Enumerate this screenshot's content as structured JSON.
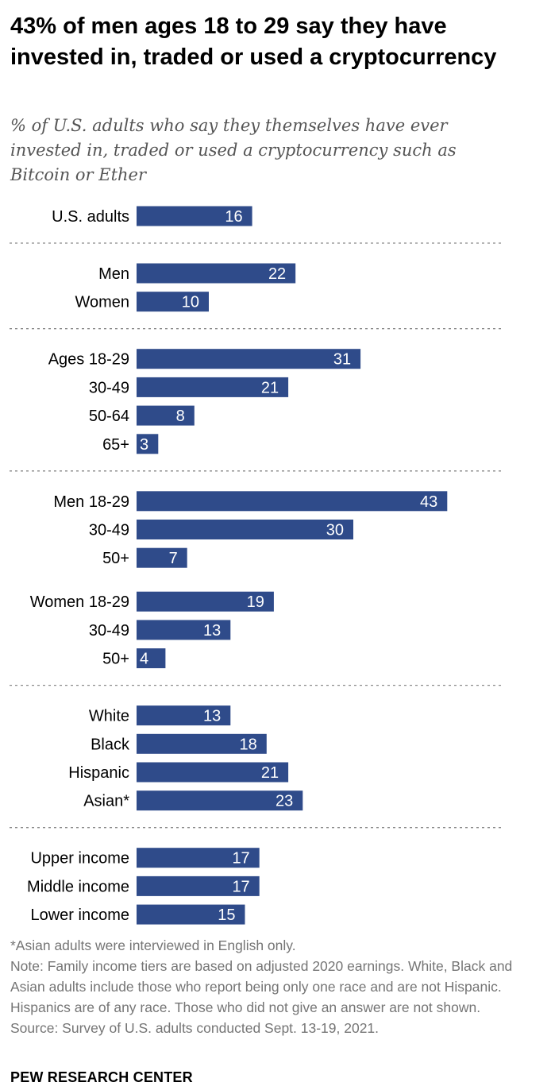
{
  "title": "43% of men ages 18 to 29 say they have invested in, traded or used a cryptocurrency",
  "subtitle": "% of U.S. adults who say they themselves have ever invested in, traded or used a cryptocurrency such as Bitcoin or Ether",
  "chart_data": {
    "type": "bar",
    "orientation": "horizontal",
    "bar_color": "#2f4b8a",
    "value_label_color": "#ffffff",
    "category_label_color": "#000000",
    "divider_style": "dotted",
    "x_range": [
      0,
      48
    ],
    "groups": [
      {
        "rows": [
          {
            "label": "U.S. adults",
            "value": 16
          }
        ]
      },
      {
        "rows": [
          {
            "label": "Men",
            "value": 22
          },
          {
            "label": "Women",
            "value": 10
          }
        ]
      },
      {
        "rows": [
          {
            "label": "Ages 18-29",
            "value": 31
          },
          {
            "label": "30-49",
            "value": 21
          },
          {
            "label": "50-64",
            "value": 8
          },
          {
            "label": "65+",
            "value": 3
          }
        ]
      },
      {
        "rows": [
          {
            "label": "Men 18-29",
            "value": 43
          },
          {
            "label": "30-49",
            "value": 30
          },
          {
            "label": "50+",
            "value": 7
          }
        ]
      },
      {
        "divider_before": false,
        "rows": [
          {
            "label": "Women 18-29",
            "value": 19
          },
          {
            "label": "30-49",
            "value": 13
          },
          {
            "label": "50+",
            "value": 4
          }
        ]
      },
      {
        "rows": [
          {
            "label": "White",
            "value": 13
          },
          {
            "label": "Black",
            "value": 18
          },
          {
            "label": "Hispanic",
            "value": 21
          },
          {
            "label": "Asian*",
            "value": 23
          }
        ]
      },
      {
        "rows": [
          {
            "label": "Upper income",
            "value": 17
          },
          {
            "label": "Middle income",
            "value": 17
          },
          {
            "label": "Lower income",
            "value": 15
          }
        ]
      }
    ]
  },
  "footnotes": {
    "asian": "*Asian adults were interviewed in English only.",
    "note": "Note: Family income tiers are based on adjusted 2020 earnings. White, Black and Asian adults include those who report being only one race and are not Hispanic. Hispanics are of any race. Those who did not give an answer are not shown.",
    "source": "Source: Survey of U.S. adults conducted Sept. 13-19, 2021."
  },
  "brand": "PEW RESEARCH CENTER"
}
